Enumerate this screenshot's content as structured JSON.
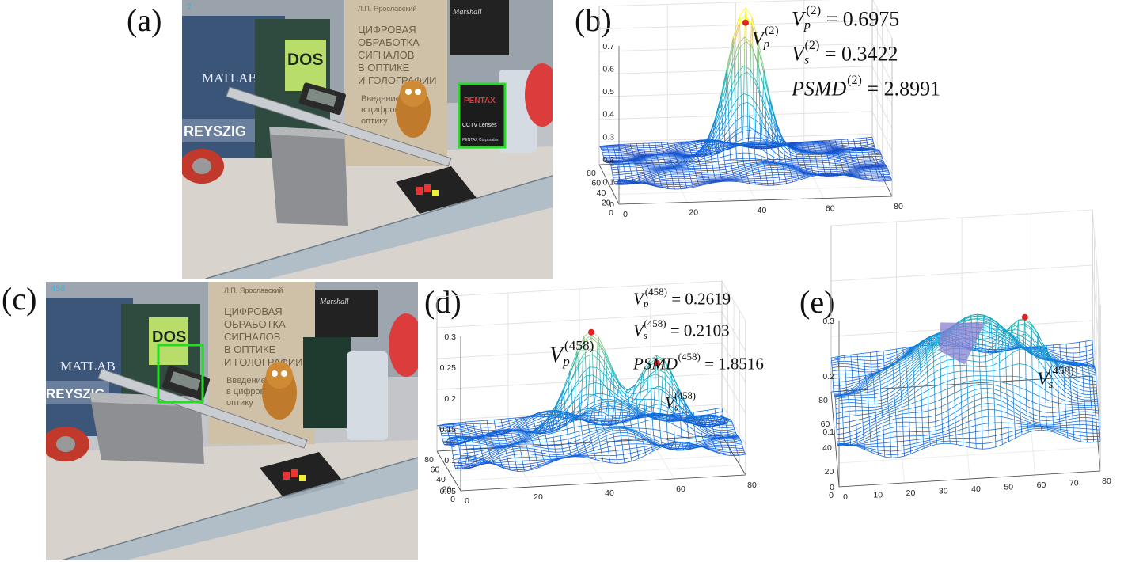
{
  "panels": {
    "a": {
      "letter": "(a)",
      "frame_no": "2"
    },
    "b": {
      "letter": "(b)",
      "eq": {
        "vp": {
          "v": "V",
          "sub": "p",
          "sup": "(2)",
          "rhs": "= 0.6975"
        },
        "vs": {
          "v": "V",
          "sub": "s",
          "sup": "(2)",
          "rhs": "= 0.3422"
        },
        "psmd": {
          "v": "PSMD",
          "sup": "(2)",
          "rhs": "= 2.8991"
        }
      },
      "peak_label": {
        "v": "V",
        "sub": "p",
        "sup": "(2)"
      }
    },
    "c": {
      "letter": "(c)",
      "frame_no": "458"
    },
    "d": {
      "letter": "(d)",
      "eq": {
        "vp": {
          "v": "V",
          "sub": "p",
          "sup": "(458)",
          "rhs": "= 0.2619"
        },
        "vs": {
          "v": "V",
          "sub": "s",
          "sup": "(458)",
          "rhs": "= 0.2103"
        },
        "psmd": {
          "v": "PSMD",
          "sup": "(458)",
          "rhs": "= 1.8516"
        }
      },
      "peak_label": {
        "v": "V",
        "sub": "p",
        "sup": "(458)"
      },
      "second_label": {
        "v": "V",
        "sub": "s",
        "sup": "(458)"
      }
    },
    "e": {
      "letter": "(e)",
      "second_label": {
        "v": "V",
        "sub": "s",
        "sup": "(458)"
      }
    }
  },
  "photo_text": {
    "book_dos": "DOS",
    "book_ru_lines": [
      "ЦИФРОВАЯ",
      "ОБРАБОТКА",
      "СИГНАЛОВ",
      "В ОПТИКЕ",
      "И ГОЛОГРАФИИ"
    ],
    "book_ru_sub": [
      "Введение",
      "в цифровую",
      "оптику"
    ],
    "book_ru_author": "Л.П. Ярославский",
    "book_matlab": "MATLAB",
    "book_kreyszig": "REYSZIG",
    "pentax_brand": "PENTAX",
    "pentax_sub": "CCTV Lenses",
    "pentax_corp": "PENTAX Corporation",
    "marshall": "Marshall"
  },
  "chart_data": [
    {
      "id": "b",
      "type": "surface",
      "z_ticks": [
        "0",
        "0.1",
        "0.2",
        "0.3",
        "0.4",
        "0.5",
        "0.6",
        "0.7"
      ],
      "zlim": [
        0,
        0.7
      ],
      "x_ticks": [
        "0",
        "20",
        "40",
        "60",
        "80"
      ],
      "y_ticks": [
        "0",
        "20",
        "40",
        "60",
        "80"
      ],
      "peaks": [
        {
          "x": 40,
          "y": 40,
          "z": 0.6975
        }
      ],
      "colormap": "parula"
    },
    {
      "id": "d",
      "type": "surface",
      "z_ticks": [
        "0.05",
        "0.1",
        "0.15",
        "0.2",
        "0.25",
        "0.3"
      ],
      "zlim": [
        0.05,
        0.3
      ],
      "x_ticks": [
        "0",
        "20",
        "40",
        "60",
        "80"
      ],
      "y_ticks": [
        "0",
        "20",
        "40",
        "60",
        "80"
      ],
      "peaks": [
        {
          "x": 40,
          "y": 40,
          "z": 0.2619
        },
        {
          "x": 58,
          "y": 35,
          "z": 0.2103
        }
      ],
      "colormap": "parula"
    },
    {
      "id": "e",
      "type": "surface",
      "z_ticks": [
        "0",
        "0.1",
        "0.2",
        "0.3"
      ],
      "zlim": [
        0,
        0.3
      ],
      "x_ticks": [
        "0",
        "10",
        "20",
        "30",
        "40",
        "50",
        "60",
        "70",
        "80"
      ],
      "y_ticks": [
        "0",
        "20",
        "40",
        "60",
        "80"
      ],
      "peaks": [
        {
          "x": 58,
          "y": 35,
          "z": 0.2103
        }
      ],
      "colormap": "parula"
    }
  ]
}
